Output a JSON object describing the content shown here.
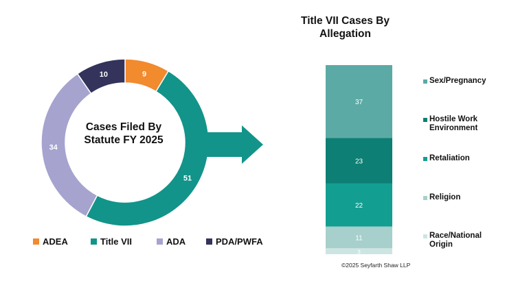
{
  "chart_data": [
    {
      "type": "pie",
      "subtype": "donut",
      "title": "Cases Filed By Statute FY 2025",
      "categories": [
        "ADEA",
        "Title VII",
        "ADA",
        "PDA/PWFA"
      ],
      "values": [
        9,
        51,
        34,
        10
      ],
      "colors": [
        "#F28A2E",
        "#12948A",
        "#A6A3CF",
        "#33335C"
      ],
      "legend_position": "bottom"
    },
    {
      "type": "bar",
      "subtype": "stacked-100",
      "title": "Title VII Cases By Allegation",
      "categories": [
        "Sex/Pregnancy",
        "Hostile Work Environment",
        "Retaliation",
        "Religion",
        "Race/National Origin"
      ],
      "values": [
        37,
        23,
        22,
        11,
        3
      ],
      "colors": [
        "#5BAAA5",
        "#0D7F74",
        "#139E92",
        "#A7CFCB",
        "#CDE5E2"
      ],
      "legend_position": "right"
    }
  ],
  "copyright": "©2025 Seyfarth Shaw LLP"
}
